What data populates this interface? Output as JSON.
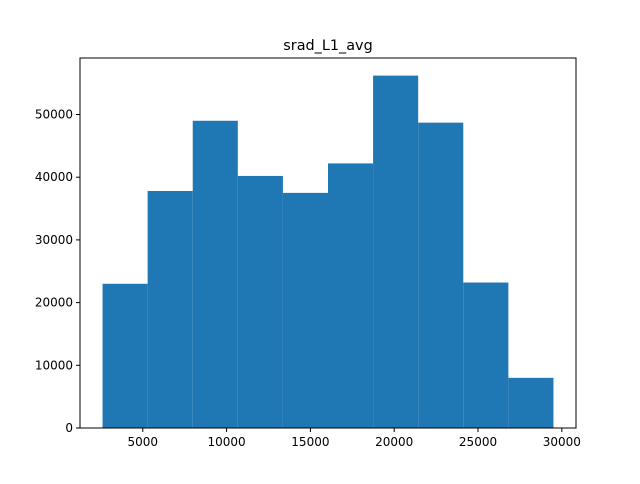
{
  "chart_data": {
    "type": "histogram",
    "title": "srad_L1_avg",
    "xlabel": "",
    "ylabel": "",
    "bin_edges": [
      2600,
      5290,
      7980,
      10670,
      13360,
      16050,
      18740,
      21430,
      24120,
      26810,
      29500
    ],
    "values": [
      23000,
      37800,
      49000,
      40200,
      37500,
      42200,
      56200,
      48700,
      23200,
      8000
    ],
    "xlim": [
      1255,
      30845
    ],
    "ylim": [
      0,
      59010
    ],
    "xticks": [
      5000,
      10000,
      15000,
      20000,
      25000,
      30000
    ],
    "yticks": [
      0,
      10000,
      20000,
      30000,
      40000,
      50000
    ],
    "bar_color": "#1f77b4",
    "grid": false
  }
}
